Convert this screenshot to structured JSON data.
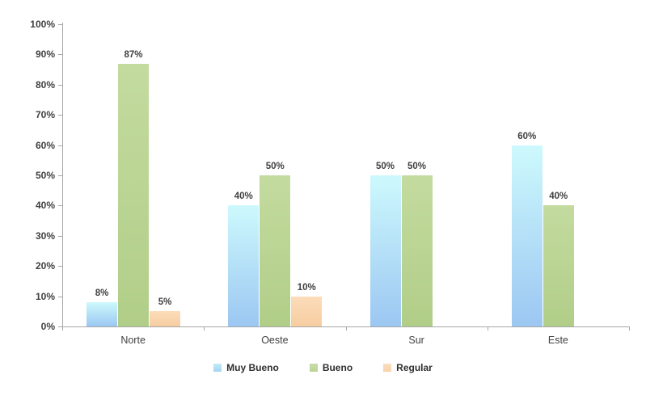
{
  "chart_data": {
    "type": "bar",
    "title": "",
    "categories": [
      "Norte",
      "Oeste",
      "Sur",
      "Este"
    ],
    "series": [
      {
        "name": "Muy Bueno",
        "values": [
          8,
          40,
          50,
          60
        ],
        "color_top": "#cdf9fd",
        "color_bottom": "#9cc7f2",
        "legend_color_top": "#c3ecf8",
        "legend_color_bottom": "#a4d4f0"
      },
      {
        "name": "Bueno",
        "values": [
          87,
          50,
          50,
          40
        ],
        "color_top": "#c3db9f",
        "color_bottom": "#b1ce88",
        "legend_color_top": "#c9dcaa",
        "legend_color_bottom": "#bcd496"
      },
      {
        "name": "Regular",
        "values": [
          5,
          10,
          null,
          null
        ],
        "color_top": "#fcdcba",
        "color_bottom": "#f6cda1",
        "legend_color_top": "#fadfc0",
        "legend_color_bottom": "#f7d2a9"
      }
    ],
    "data_label_suffix": "%",
    "ylim": [
      0,
      100
    ],
    "ytick_step": 10,
    "ytick_labels": [
      "0%",
      "10%",
      "20%",
      "30%",
      "40%",
      "50%",
      "60%",
      "70%",
      "80%",
      "90%",
      "100%"
    ],
    "grid": false,
    "legend_position": "bottom",
    "axis_color": "#a6a6a6",
    "text_color": "#404040"
  }
}
